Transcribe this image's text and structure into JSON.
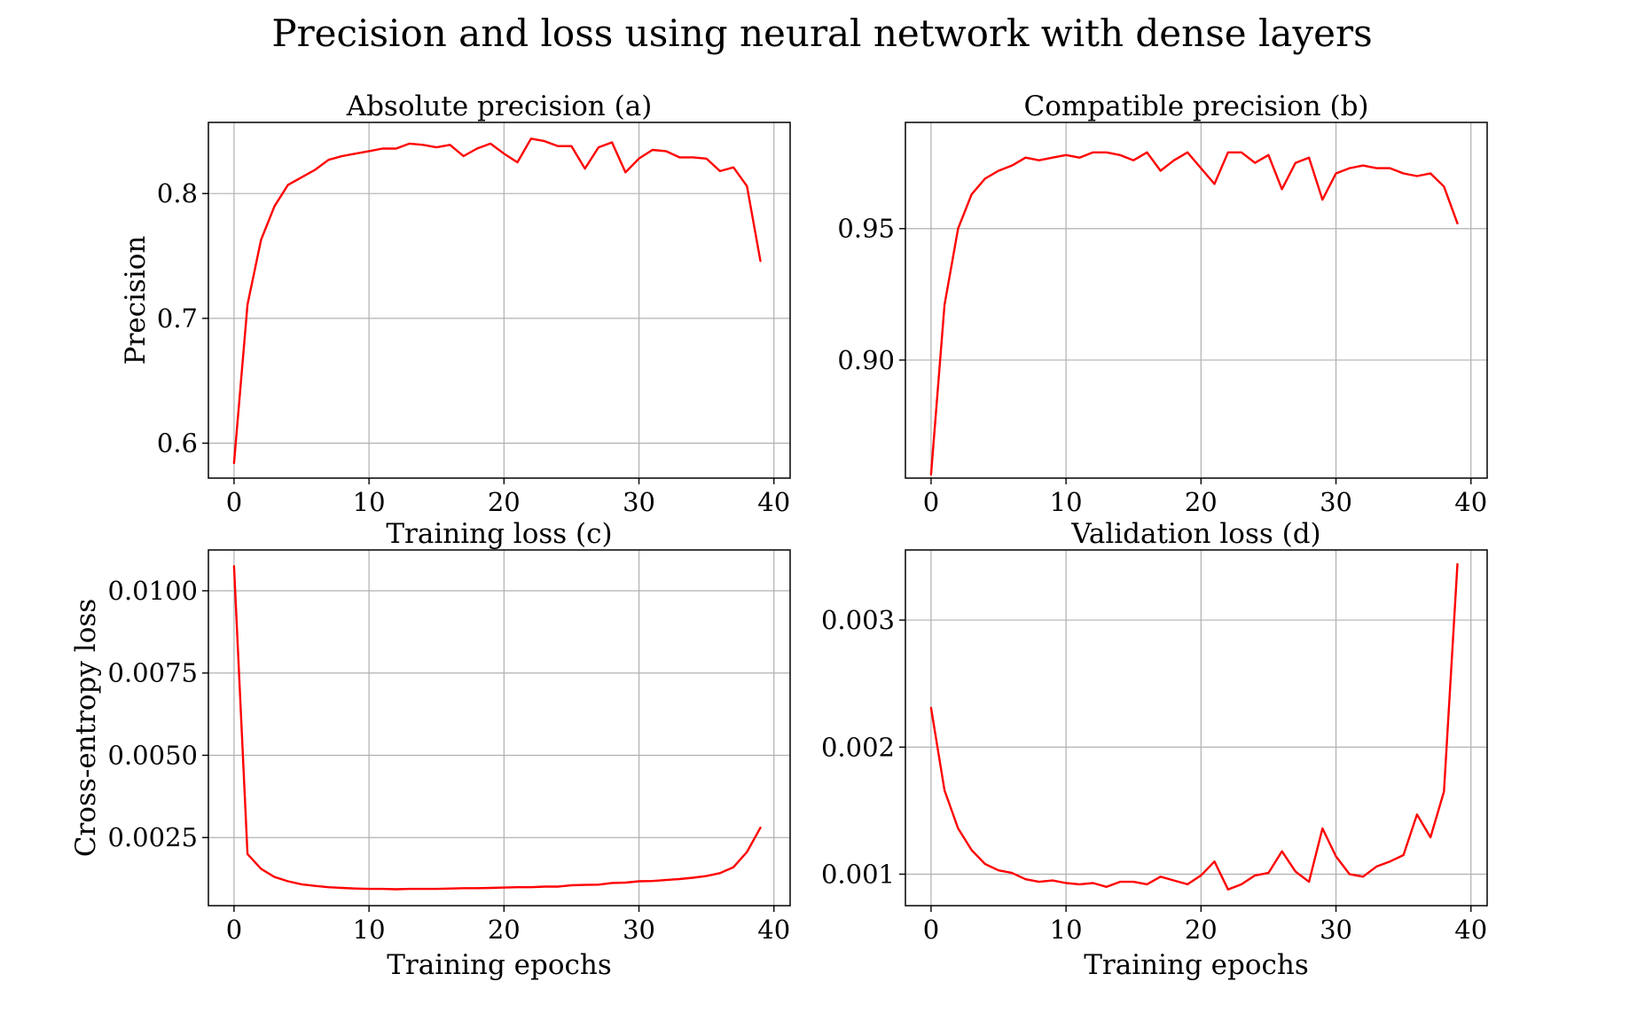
{
  "figure": {
    "title": "Precision and loss using neural network with dense layers",
    "line_color": "#ff0000"
  },
  "chart_data": [
    {
      "id": "a",
      "type": "line",
      "title": "Absolute precision (a)",
      "xlabel": "",
      "ylabel": "Precision",
      "xlim": [
        -1.9,
        41.2
      ],
      "ylim": [
        0.572,
        0.857
      ],
      "xticks": [
        0,
        10,
        20,
        30,
        40
      ],
      "xtick_labels": [
        "0",
        "10",
        "20",
        "30",
        "40"
      ],
      "yticks": [
        0.6,
        0.7,
        0.8
      ],
      "ytick_labels": [
        "0.6",
        "0.7",
        "0.8"
      ],
      "grid": true,
      "x": [
        0,
        1,
        2,
        3,
        4,
        5,
        6,
        7,
        8,
        9,
        10,
        11,
        12,
        13,
        14,
        15,
        16,
        17,
        18,
        19,
        20,
        21,
        22,
        23,
        24,
        25,
        26,
        27,
        28,
        29,
        30,
        31,
        32,
        33,
        34,
        35,
        36,
        37,
        38,
        39
      ],
      "series": [
        {
          "values": [
            0.584,
            0.711,
            0.763,
            0.79,
            0.807,
            0.813,
            0.819,
            0.827,
            0.83,
            0.832,
            0.834,
            0.836,
            0.836,
            0.84,
            0.839,
            0.837,
            0.839,
            0.83,
            0.836,
            0.84,
            0.832,
            0.825,
            0.844,
            0.842,
            0.838,
            0.838,
            0.82,
            0.837,
            0.841,
            0.817,
            0.828,
            0.835,
            0.834,
            0.829,
            0.829,
            0.828,
            0.818,
            0.821,
            0.806,
            0.746
          ]
        }
      ]
    },
    {
      "id": "b",
      "type": "line",
      "title": "Compatible precision (b)",
      "xlabel": "",
      "ylabel": "",
      "xlim": [
        -1.9,
        41.2
      ],
      "ylim": [
        0.8551,
        0.9904
      ],
      "xticks": [
        0,
        10,
        20,
        30,
        40
      ],
      "xtick_labels": [
        "0",
        "10",
        "20",
        "30",
        "40"
      ],
      "yticks": [
        0.9,
        0.95
      ],
      "ytick_labels": [
        "0.90",
        "0.95"
      ],
      "grid": true,
      "x": [
        0,
        1,
        2,
        3,
        4,
        5,
        6,
        7,
        8,
        9,
        10,
        11,
        12,
        13,
        14,
        15,
        16,
        17,
        18,
        19,
        20,
        21,
        22,
        23,
        24,
        25,
        26,
        27,
        28,
        29,
        30,
        31,
        32,
        33,
        34,
        35,
        36,
        37,
        38,
        39
      ],
      "series": [
        {
          "values": [
            0.8565,
            0.921,
            0.95,
            0.963,
            0.969,
            0.972,
            0.974,
            0.977,
            0.976,
            0.977,
            0.978,
            0.977,
            0.979,
            0.979,
            0.978,
            0.976,
            0.979,
            0.972,
            0.976,
            0.979,
            0.973,
            0.967,
            0.979,
            0.979,
            0.975,
            0.978,
            0.965,
            0.975,
            0.977,
            0.961,
            0.971,
            0.973,
            0.974,
            0.973,
            0.973,
            0.971,
            0.97,
            0.971,
            0.966,
            0.952
          ]
        }
      ]
    },
    {
      "id": "c",
      "type": "line",
      "title": "Training loss (c)",
      "xlabel": "Training epochs",
      "ylabel": "Cross-entropy loss",
      "xlim": [
        -1.9,
        41.2
      ],
      "ylim": [
        0.00043,
        0.01124
      ],
      "xticks": [
        0,
        10,
        20,
        30,
        40
      ],
      "xtick_labels": [
        "0",
        "10",
        "20",
        "30",
        "40"
      ],
      "yticks": [
        0.0025,
        0.005,
        0.0075,
        0.01
      ],
      "ytick_labels": [
        "0.0025",
        "0.0050",
        "0.0075",
        "0.0100"
      ],
      "grid": true,
      "x": [
        0,
        1,
        2,
        3,
        4,
        5,
        6,
        7,
        8,
        9,
        10,
        11,
        12,
        13,
        14,
        15,
        16,
        17,
        18,
        19,
        20,
        21,
        22,
        23,
        24,
        25,
        26,
        27,
        28,
        29,
        30,
        31,
        32,
        33,
        34,
        35,
        36,
        37,
        38,
        39
      ],
      "series": [
        {
          "values": [
            0.01075,
            0.002,
            0.00155,
            0.0013,
            0.00117,
            0.00108,
            0.00103,
            0.00099,
            0.00097,
            0.00095,
            0.00094,
            0.00094,
            0.00093,
            0.00094,
            0.00094,
            0.00094,
            0.00095,
            0.00096,
            0.00096,
            0.00097,
            0.00098,
            0.00099,
            0.00099,
            0.00101,
            0.00101,
            0.00105,
            0.00106,
            0.00107,
            0.00112,
            0.00113,
            0.00117,
            0.00118,
            0.00121,
            0.00124,
            0.00128,
            0.00133,
            0.00142,
            0.0016,
            0.00206,
            0.0028
          ]
        }
      ]
    },
    {
      "id": "d",
      "type": "line",
      "title": "Validation loss (d)",
      "xlabel": "Training epochs",
      "ylabel": "",
      "xlim": [
        -1.9,
        41.2
      ],
      "ylim": [
        0.000752,
        0.003552
      ],
      "xticks": [
        0,
        10,
        20,
        30,
        40
      ],
      "xtick_labels": [
        "0",
        "10",
        "20",
        "30",
        "40"
      ],
      "yticks": [
        0.001,
        0.002,
        0.003
      ],
      "ytick_labels": [
        "0.001",
        "0.002",
        "0.003"
      ],
      "grid": true,
      "x": [
        0,
        1,
        2,
        3,
        4,
        5,
        6,
        7,
        8,
        9,
        10,
        11,
        12,
        13,
        14,
        15,
        16,
        17,
        18,
        19,
        20,
        21,
        22,
        23,
        24,
        25,
        26,
        27,
        28,
        29,
        30,
        31,
        32,
        33,
        34,
        35,
        36,
        37,
        38,
        39
      ],
      "series": [
        {
          "values": [
            0.00231,
            0.00166,
            0.00136,
            0.00119,
            0.00108,
            0.00103,
            0.00101,
            0.00096,
            0.00094,
            0.00095,
            0.00093,
            0.00092,
            0.00093,
            0.0009,
            0.00094,
            0.00094,
            0.00092,
            0.00098,
            0.00095,
            0.00092,
            0.00099,
            0.0011,
            0.00088,
            0.00092,
            0.00099,
            0.00101,
            0.00118,
            0.00102,
            0.00094,
            0.00136,
            0.00114,
            0.001,
            0.00098,
            0.00106,
            0.0011,
            0.00115,
            0.00147,
            0.00129,
            0.00165,
            0.00344
          ]
        }
      ]
    }
  ]
}
